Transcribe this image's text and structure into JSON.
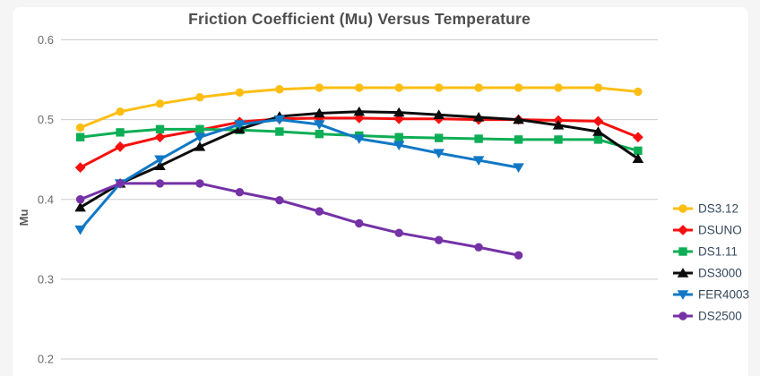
{
  "page": {
    "background_color": "#f5f5f6",
    "card_background_color": "#ffffff"
  },
  "chart": {
    "title": "Friction Coefficient (Mu) Versus Temperature",
    "title_color": "#4e4e4e",
    "grid_color": "#cbcbcb",
    "tick_label_color": "#6b6b6b",
    "axis_title_color": "#5a5a5a",
    "legend_text_color": "#34485c"
  },
  "chart_data": {
    "type": "line",
    "title": "Friction Coefficient (Mu) Versus Temperature",
    "xlabel": "",
    "ylabel": "Mu",
    "ylim": [
      0.2,
      0.6
    ],
    "y_ticks": [
      "0.6",
      "0.5",
      "0.4",
      "0.3",
      "0.2"
    ],
    "y_tick_values": [
      0.6,
      0.5,
      0.4,
      0.3,
      0.2
    ],
    "x": [
      1,
      2,
      3,
      4,
      5,
      6,
      7,
      8,
      9,
      10,
      11,
      12,
      13,
      14,
      15
    ],
    "x_axis_labels_visible": false,
    "grid": "horizontal-only",
    "legend_position": "right",
    "series": [
      {
        "name": "DS3.12",
        "color": "#fdbe14",
        "marker": "circle",
        "values": [
          0.49,
          0.51,
          0.52,
          0.528,
          0.534,
          0.538,
          0.54,
          0.54,
          0.54,
          0.54,
          0.54,
          0.54,
          0.54,
          0.54,
          0.535
        ]
      },
      {
        "name": "DSUNO",
        "color": "#f5100f",
        "marker": "diamond",
        "values": [
          0.44,
          0.466,
          0.478,
          0.487,
          0.497,
          0.501,
          0.502,
          0.502,
          0.501,
          0.501,
          0.5,
          0.5,
          0.499,
          0.498,
          0.478
        ]
      },
      {
        "name": "DS1.11",
        "color": "#0dae56",
        "marker": "square",
        "values": [
          0.478,
          0.484,
          0.488,
          0.488,
          0.487,
          0.485,
          0.482,
          0.48,
          0.478,
          0.477,
          0.476,
          0.475,
          0.475,
          0.475,
          0.461
        ]
      },
      {
        "name": "DS3000",
        "color": "#0c0c0c",
        "marker": "triangle-up",
        "values": [
          0.39,
          0.42,
          0.442,
          0.466,
          0.488,
          0.504,
          0.508,
          0.51,
          0.509,
          0.506,
          0.503,
          0.5,
          0.493,
          0.485,
          0.451
        ]
      },
      {
        "name": "FER4003",
        "color": "#1178c5",
        "marker": "triangle-down",
        "values": [
          0.362,
          0.42,
          0.45,
          0.478,
          0.494,
          0.5,
          0.494,
          0.476,
          0.468,
          0.458,
          0.449,
          0.44
        ]
      },
      {
        "name": "DS2500",
        "color": "#7432a6",
        "marker": "circle",
        "values": [
          0.4,
          0.42,
          0.42,
          0.42,
          0.409,
          0.399,
          0.385,
          0.37,
          0.358,
          0.349,
          0.34,
          0.33
        ]
      }
    ]
  }
}
